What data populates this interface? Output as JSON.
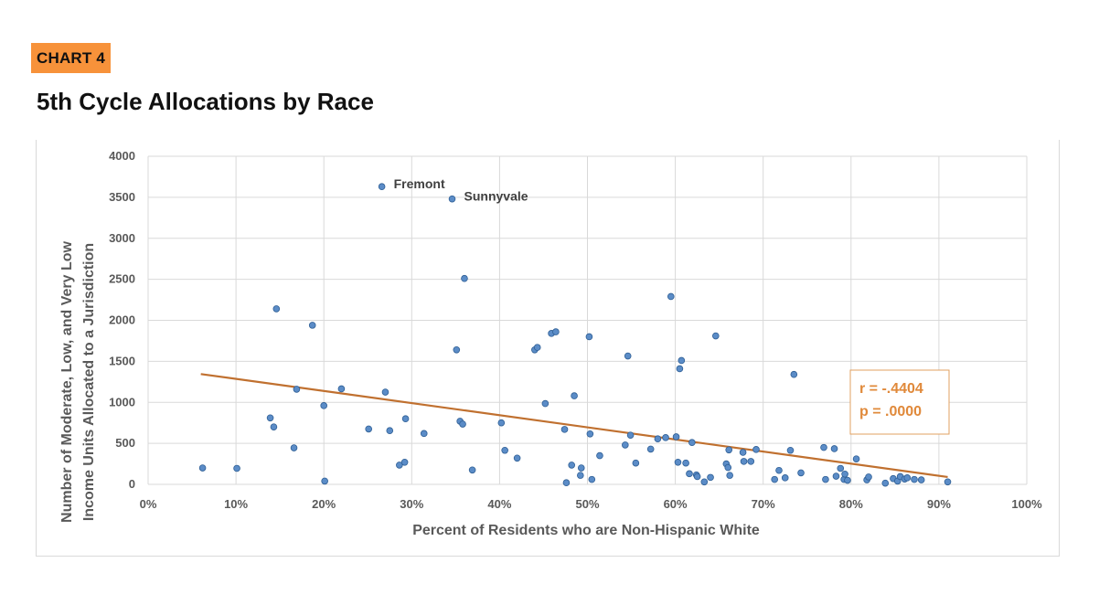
{
  "header": {
    "badge": "CHART 4",
    "title": "5th Cycle Allocations by Race"
  },
  "chart_data": {
    "type": "scatter",
    "title": "5th Cycle Allocations by Race",
    "xlabel": "Percent of Residents who are Non-Hispanic White",
    "ylabel_line1": "Number of Moderate, Low, and Very Low",
    "ylabel_line2": "Income Units Allocated to a Jurisdiction",
    "xlim": [
      0,
      100
    ],
    "ylim": [
      0,
      4000
    ],
    "x_ticks": [
      "0%",
      "10%",
      "20%",
      "30%",
      "40%",
      "50%",
      "60%",
      "70%",
      "80%",
      "90%",
      "100%"
    ],
    "y_ticks": [
      "0",
      "500",
      "1000",
      "1500",
      "2000",
      "2500",
      "3000",
      "3500",
      "4000"
    ],
    "grid": true,
    "trendline": {
      "x": [
        6,
        91
      ],
      "y": [
        1345,
        90
      ]
    },
    "stats": {
      "r": "r = -.4404",
      "p": "p = .0000"
    },
    "annotations": [
      {
        "label": "Fremont",
        "x": 26.6,
        "y": 3630
      },
      {
        "label": "Sunnyvale",
        "x": 34.6,
        "y": 3480
      }
    ],
    "colors": {
      "points": "#5b8cc7",
      "point_stroke": "#2f5f95",
      "trendline": "#c0702f",
      "stats": "#e0893a"
    },
    "points": [
      [
        6.2,
        200
      ],
      [
        10.1,
        195
      ],
      [
        13.9,
        810
      ],
      [
        14.3,
        700
      ],
      [
        14.6,
        2140
      ],
      [
        16.6,
        445
      ],
      [
        16.9,
        1160
      ],
      [
        18.7,
        1940
      ],
      [
        20.0,
        960
      ],
      [
        20.1,
        40
      ],
      [
        22.0,
        1165
      ],
      [
        25.1,
        675
      ],
      [
        26.6,
        3630
      ],
      [
        27.0,
        1125
      ],
      [
        27.5,
        655
      ],
      [
        28.6,
        235
      ],
      [
        29.2,
        270
      ],
      [
        29.3,
        800
      ],
      [
        31.4,
        620
      ],
      [
        34.6,
        3480
      ],
      [
        35.1,
        1640
      ],
      [
        35.5,
        770
      ],
      [
        35.8,
        735
      ],
      [
        36.0,
        2510
      ],
      [
        36.9,
        175
      ],
      [
        40.2,
        750
      ],
      [
        40.6,
        415
      ],
      [
        42.0,
        320
      ],
      [
        44.0,
        1640
      ],
      [
        44.3,
        1670
      ],
      [
        45.2,
        985
      ],
      [
        45.9,
        1840
      ],
      [
        46.4,
        1860
      ],
      [
        47.4,
        670
      ],
      [
        47.6,
        20
      ],
      [
        48.2,
        235
      ],
      [
        48.5,
        1080
      ],
      [
        49.2,
        110
      ],
      [
        49.3,
        200
      ],
      [
        50.2,
        1800
      ],
      [
        50.3,
        615
      ],
      [
        50.5,
        60
      ],
      [
        51.4,
        350
      ],
      [
        54.3,
        480
      ],
      [
        54.6,
        1565
      ],
      [
        54.9,
        600
      ],
      [
        55.5,
        260
      ],
      [
        57.2,
        430
      ],
      [
        58.0,
        555
      ],
      [
        58.9,
        570
      ],
      [
        59.5,
        2290
      ],
      [
        60.1,
        580
      ],
      [
        60.3,
        270
      ],
      [
        60.5,
        1410
      ],
      [
        60.7,
        1510
      ],
      [
        61.2,
        260
      ],
      [
        61.6,
        130
      ],
      [
        61.9,
        510
      ],
      [
        62.4,
        115
      ],
      [
        62.5,
        95
      ],
      [
        63.3,
        30
      ],
      [
        64.0,
        85
      ],
      [
        64.6,
        1810
      ],
      [
        65.8,
        250
      ],
      [
        66.0,
        205
      ],
      [
        66.1,
        420
      ],
      [
        66.2,
        110
      ],
      [
        67.7,
        390
      ],
      [
        67.8,
        280
      ],
      [
        68.6,
        280
      ],
      [
        69.2,
        425
      ],
      [
        71.3,
        60
      ],
      [
        71.8,
        170
      ],
      [
        72.5,
        80
      ],
      [
        73.1,
        415
      ],
      [
        73.5,
        1340
      ],
      [
        74.3,
        140
      ],
      [
        76.9,
        450
      ],
      [
        77.1,
        60
      ],
      [
        78.1,
        435
      ],
      [
        78.3,
        100
      ],
      [
        78.8,
        195
      ],
      [
        79.2,
        60
      ],
      [
        79.3,
        125
      ],
      [
        79.6,
        50
      ],
      [
        80.6,
        310
      ],
      [
        81.8,
        55
      ],
      [
        82.0,
        90
      ],
      [
        83.9,
        15
      ],
      [
        84.8,
        70
      ],
      [
        85.3,
        40
      ],
      [
        85.6,
        95
      ],
      [
        86.1,
        65
      ],
      [
        86.4,
        80
      ],
      [
        87.2,
        60
      ],
      [
        88.0,
        55
      ],
      [
        91.0,
        30
      ]
    ]
  }
}
